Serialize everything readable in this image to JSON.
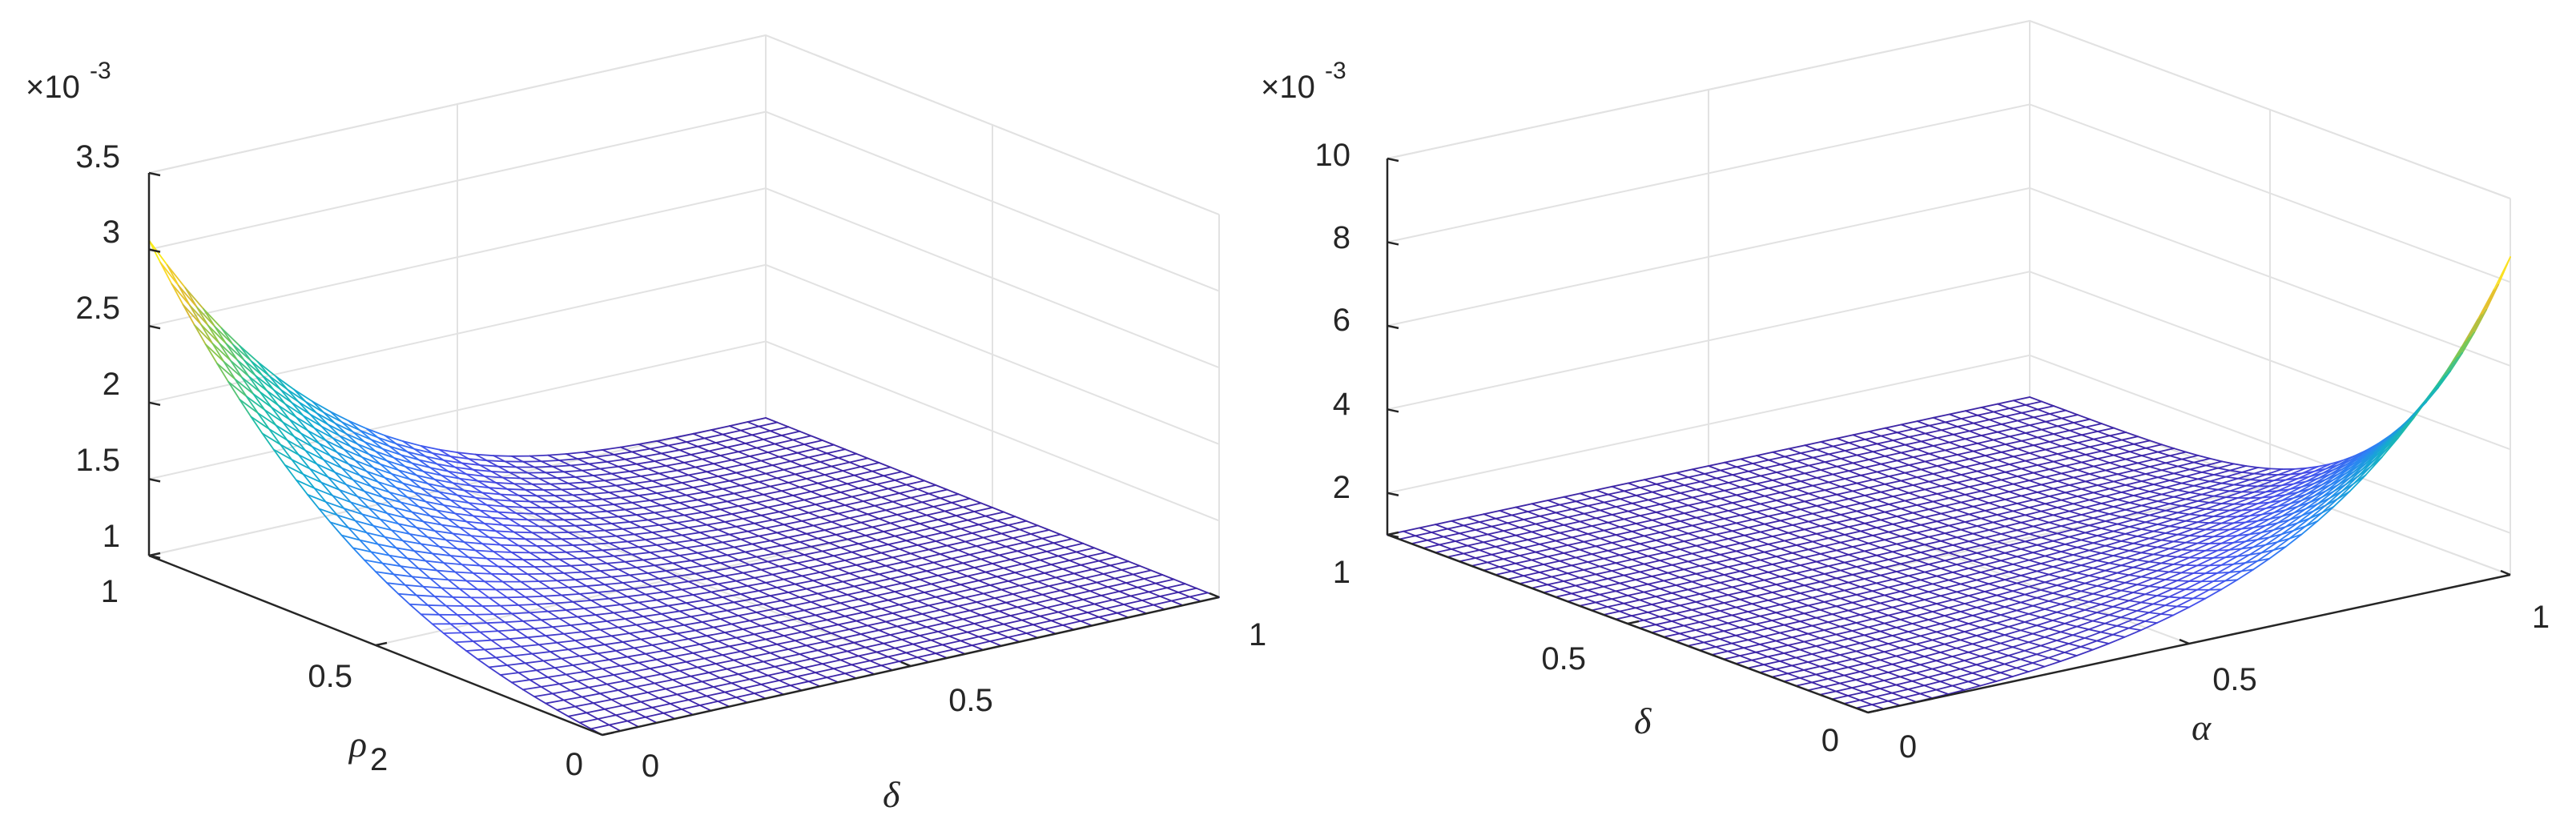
{
  "chart_data": [
    {
      "type": "surface",
      "title": "",
      "x_axis": {
        "label": "δ",
        "label_subscript": "",
        "range": [
          0,
          1
        ],
        "ticks": [
          "0",
          "0.5",
          "1"
        ]
      },
      "y_axis": {
        "label": "ρ",
        "label_subscript": "2",
        "range": [
          0,
          1
        ],
        "ticks": [
          "0",
          "0.5",
          "1"
        ]
      },
      "z_axis": {
        "label": "",
        "range": [
          1,
          3.5
        ],
        "ticks": [
          "1",
          "1.5",
          "2",
          "2.5",
          "3",
          "3.5"
        ],
        "multiplier": "×10",
        "multiplier_exponent": "-3"
      },
      "grid": true,
      "colormap": "parula",
      "surface_samples": {
        "description_axes": "z values (×10^-3) along ρ2 at fixed δ",
        "rho2": [
          0,
          0.25,
          0.5,
          0.75,
          1
        ],
        "delta_0": [
          1.0,
          1.2,
          1.5,
          2.2,
          3.0
        ],
        "delta_0_1": [
          1.0,
          1.1,
          1.3,
          1.7,
          2.3
        ],
        "delta_0_3": [
          1.0,
          1.0,
          1.05,
          1.15,
          1.35
        ],
        "delta_1": [
          1.0,
          1.0,
          1.0,
          1.0,
          1.0
        ]
      }
    },
    {
      "type": "surface",
      "title": "",
      "x_axis": {
        "label": "α",
        "label_subscript": "",
        "range": [
          0,
          1
        ],
        "ticks": [
          "0",
          "0.5",
          "1"
        ]
      },
      "y_axis": {
        "label": "δ",
        "label_subscript": "",
        "range": [
          0,
          1
        ],
        "ticks": [
          "0",
          "0.5",
          "1"
        ]
      },
      "z_axis": {
        "label": "",
        "range": [
          1,
          10
        ],
        "ticks": [
          "2",
          "4",
          "6",
          "8",
          "10"
        ],
        "multiplier": "×10",
        "multiplier_exponent": "-3"
      },
      "grid": true,
      "colormap": "parula",
      "surface_samples": {
        "description_axes": "z values (×10^-3) along δ at fixed α",
        "delta": [
          0,
          0.25,
          0.5,
          0.75,
          1
        ],
        "alpha_0": [
          1.0,
          1.0,
          1.0,
          1.0,
          1.0
        ],
        "alpha_0_5": [
          1.2,
          1.0,
          1.0,
          1.0,
          1.0
        ],
        "alpha_0_75": [
          3.0,
          1.3,
          1.0,
          1.0,
          1.0
        ],
        "alpha_1": [
          8.5,
          3.0,
          1.6,
          1.2,
          1.0
        ]
      }
    }
  ]
}
